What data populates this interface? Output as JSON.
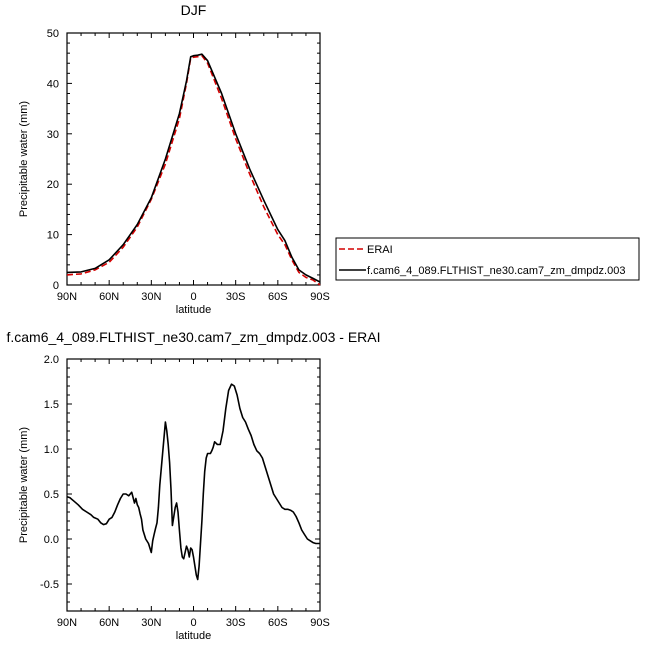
{
  "chart_data": [
    {
      "type": "line",
      "title": "DJF",
      "xlabel": "latitude",
      "ylabel": "Precipitable water (mm)",
      "xlim": [
        90,
        -90
      ],
      "ylim": [
        0,
        50
      ],
      "x_ticks": [
        90,
        60,
        30,
        0,
        -30,
        -60,
        -90
      ],
      "x_tick_labels": [
        "90N",
        "60N",
        "30N",
        "0",
        "30S",
        "60S",
        "90S"
      ],
      "y_ticks": [
        0,
        10,
        20,
        30,
        40,
        50
      ],
      "y_tick_labels": [
        "0",
        "10",
        "20",
        "30",
        "40",
        "50"
      ],
      "legend_position": "right",
      "series": [
        {
          "name": "ERAI",
          "color": "#d40000",
          "dash": "dashed",
          "x": [
            90,
            80,
            70,
            60,
            50,
            40,
            30,
            20,
            10,
            5,
            2,
            0,
            -3,
            -6,
            -10,
            -20,
            -30,
            -40,
            -50,
            -60,
            -65,
            -70,
            -75,
            -80,
            -85,
            -90
          ],
          "y": [
            2.0,
            2.2,
            3.0,
            4.5,
            7.5,
            11.5,
            17.0,
            24.0,
            33.0,
            40.0,
            45.0,
            45.2,
            45.3,
            45.5,
            44.0,
            37.0,
            29.0,
            22.0,
            15.5,
            10.0,
            8.0,
            5.0,
            2.5,
            1.5,
            1.0,
            0.0
          ]
        },
        {
          "name": "f.cam6_4_089.FLTHIST_ne30.cam7_zm_dmpdz.003",
          "color": "#000000",
          "dash": "solid",
          "x": [
            90,
            80,
            70,
            60,
            50,
            40,
            30,
            20,
            10,
            5,
            2,
            0,
            -3,
            -6,
            -10,
            -20,
            -30,
            -40,
            -50,
            -60,
            -65,
            -70,
            -75,
            -80,
            -85,
            -90
          ],
          "y": [
            2.5,
            2.6,
            3.3,
            5.0,
            8.0,
            12.0,
            17.3,
            25.0,
            34.0,
            40.5,
            45.3,
            45.5,
            45.6,
            45.8,
            44.5,
            38.0,
            30.0,
            23.0,
            16.8,
            11.0,
            8.8,
            5.5,
            3.0,
            2.0,
            1.3,
            0.6
          ]
        }
      ]
    },
    {
      "type": "line",
      "title": "f.cam6_4_089.FLTHIST_ne30.cam7_zm_dmpdz.003 - ERAI",
      "xlabel": "latitude",
      "ylabel": "Precipitable water (mm)",
      "xlim": [
        90,
        -90
      ],
      "ylim": [
        -0.8,
        2.0
      ],
      "x_ticks": [
        90,
        60,
        30,
        0,
        -30,
        -60,
        -90
      ],
      "x_tick_labels": [
        "90N",
        "60N",
        "30N",
        "0",
        "30S",
        "60S",
        "90S"
      ],
      "y_ticks": [
        -0.5,
        0.0,
        0.5,
        1.0,
        1.5,
        2.0
      ],
      "y_tick_labels": [
        "-0.5",
        "0.0",
        "0.5",
        "1.0",
        "1.5",
        "2.0"
      ],
      "series": [
        {
          "color": "#000000",
          "dash": "solid",
          "x": [
            90,
            88,
            85,
            82,
            79,
            76,
            73,
            71,
            68,
            66,
            64,
            62,
            60,
            58,
            56,
            54,
            52,
            50,
            48,
            46,
            44,
            42,
            41,
            40,
            39,
            38,
            37,
            36,
            35,
            34,
            32,
            30,
            29,
            28,
            27,
            26,
            25,
            24,
            22,
            20,
            19,
            18,
            17,
            16,
            15,
            14,
            13,
            12,
            11,
            10,
            9,
            8,
            7,
            6,
            5,
            4,
            3,
            2,
            1,
            0,
            -1,
            -2,
            -3,
            -4,
            -5,
            -6,
            -7,
            -8,
            -9,
            -10,
            -11,
            -12,
            -13,
            -14,
            -15,
            -17,
            -19,
            -21,
            -23,
            -25,
            -27,
            -29,
            -31,
            -33,
            -35,
            -37,
            -39,
            -41,
            -43,
            -45,
            -47,
            -49,
            -51,
            -53,
            -55,
            -57,
            -59,
            -61,
            -63,
            -65,
            -67,
            -69,
            -71,
            -73,
            -75,
            -77,
            -79,
            -81,
            -83,
            -85,
            -87,
            -89,
            -90
          ],
          "y": [
            0.47,
            0.46,
            0.42,
            0.38,
            0.33,
            0.3,
            0.27,
            0.24,
            0.22,
            0.18,
            0.16,
            0.17,
            0.22,
            0.24,
            0.3,
            0.38,
            0.45,
            0.5,
            0.5,
            0.48,
            0.52,
            0.4,
            0.45,
            0.38,
            0.35,
            0.28,
            0.22,
            0.1,
            0.05,
            0.0,
            -0.05,
            -0.15,
            -0.02,
            0.05,
            0.12,
            0.18,
            0.35,
            0.6,
            0.95,
            1.3,
            1.2,
            1.05,
            0.85,
            0.55,
            0.15,
            0.25,
            0.35,
            0.4,
            0.3,
            0.1,
            -0.1,
            -0.2,
            -0.22,
            -0.15,
            -0.08,
            -0.12,
            -0.2,
            -0.1,
            -0.12,
            -0.2,
            -0.3,
            -0.4,
            -0.45,
            -0.3,
            -0.05,
            0.2,
            0.5,
            0.75,
            0.9,
            0.95,
            0.95,
            0.95,
            0.98,
            1.02,
            1.08,
            1.05,
            1.05,
            1.2,
            1.45,
            1.65,
            1.72,
            1.7,
            1.6,
            1.45,
            1.35,
            1.3,
            1.22,
            1.15,
            1.05,
            0.98,
            0.95,
            0.9,
            0.8,
            0.7,
            0.6,
            0.5,
            0.45,
            0.4,
            0.35,
            0.33,
            0.33,
            0.32,
            0.3,
            0.25,
            0.18,
            0.1,
            0.05,
            0.0,
            -0.02,
            -0.04,
            -0.05,
            -0.05,
            -0.05
          ]
        }
      ]
    }
  ]
}
